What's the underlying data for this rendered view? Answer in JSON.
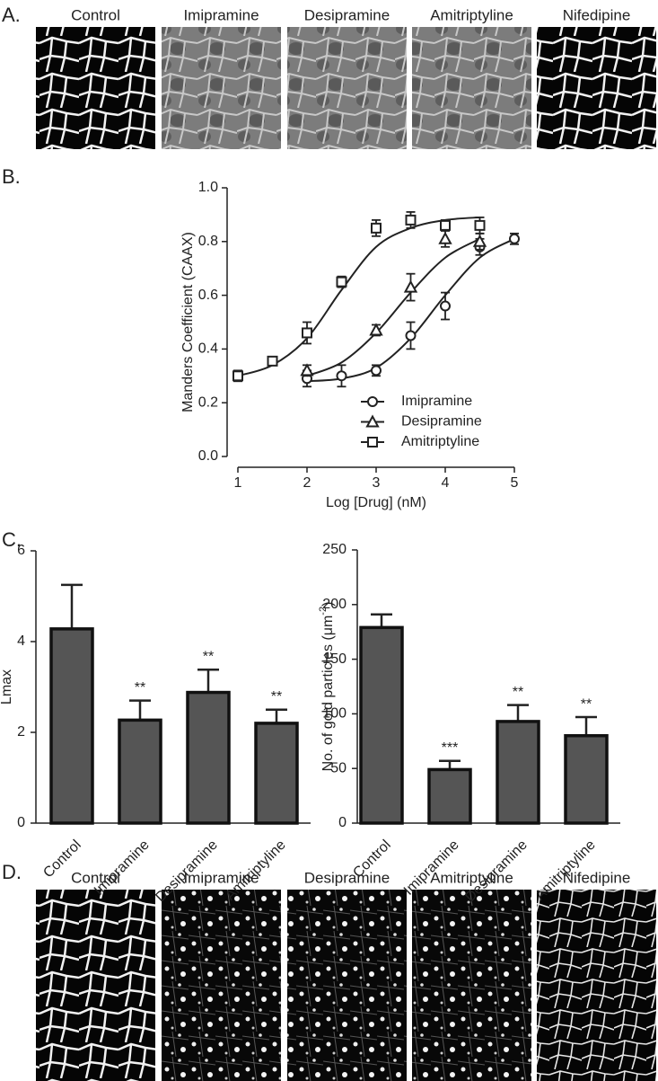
{
  "panel_a": {
    "label": "A.",
    "images": [
      "Control",
      "Imipramine",
      "Desipramine",
      "Amitriptyline",
      "Nifedipine"
    ]
  },
  "panel_d": {
    "label": "D.",
    "images": [
      "Control",
      "Imipramine",
      "Desipramine",
      "Amitriptyline",
      "Nifedipine"
    ]
  },
  "chart_data": [
    {
      "type": "line",
      "panel_label": "B.",
      "x_label": "Log [Drug] (nM)",
      "y_label": "Manders Coefficient (CAAX)",
      "x": [
        1,
        1.5,
        2,
        2.5,
        3,
        3.5,
        4,
        4.5,
        5
      ],
      "xlim": [
        1,
        5
      ],
      "xticks": [
        1,
        2,
        3,
        4,
        5
      ],
      "ylim": [
        0,
        1
      ],
      "yticks": [
        {
          "value": 0,
          "label": "0.0"
        },
        {
          "value": 0.2,
          "label": "0.2"
        },
        {
          "value": 0.4,
          "label": "0.4"
        },
        {
          "value": 0.6,
          "label": "0.6"
        },
        {
          "value": 0.8,
          "label": "0.8"
        },
        {
          "value": 1,
          "label": "1.0"
        }
      ],
      "legend": "lower right",
      "color": "#222222",
      "series": [
        {
          "name": "Imipramine",
          "marker": "circle",
          "values": [
            null,
            null,
            0.29,
            0.3,
            0.32,
            0.45,
            0.56,
            0.78,
            0.81
          ],
          "errors": [
            null,
            null,
            0.03,
            0.04,
            0.02,
            0.05,
            0.05,
            0.03,
            0.02
          ],
          "curve": [
            null,
            null,
            0.28,
            0.29,
            0.33,
            0.44,
            0.6,
            0.74,
            0.81
          ]
        },
        {
          "name": "Desipramine",
          "marker": "triangle",
          "values": [
            null,
            null,
            0.32,
            null,
            0.47,
            0.63,
            0.81,
            0.8,
            null
          ],
          "errors": [
            null,
            null,
            0.02,
            null,
            0.02,
            0.05,
            0.03,
            0.03,
            null
          ],
          "curve": [
            null,
            null,
            0.3,
            0.35,
            0.46,
            0.61,
            0.74,
            0.81,
            null
          ]
        },
        {
          "name": "Amitriptyline",
          "marker": "square",
          "values": [
            0.3,
            0.355,
            0.46,
            0.65,
            0.85,
            0.88,
            0.86,
            0.86,
            null
          ],
          "errors": [
            0.02,
            0.01,
            0.04,
            0.02,
            0.03,
            0.03,
            0.02,
            0.03,
            null
          ],
          "curve": [
            0.3,
            0.34,
            0.44,
            0.62,
            0.78,
            0.85,
            0.88,
            0.89,
            null
          ]
        }
      ]
    },
    {
      "type": "bar",
      "panel_label": "C.",
      "y_label": "Lmax",
      "categories": [
        "Control",
        "Imipramine",
        "Desipramine",
        "Amitriptyline"
      ],
      "values": [
        4.28,
        2.27,
        2.88,
        2.2
      ],
      "errors": [
        0.97,
        0.43,
        0.5,
        0.3
      ],
      "annotations": [
        null,
        "**",
        "**",
        "**"
      ],
      "ylim": [
        0,
        6
      ],
      "yticks": [
        0,
        2,
        4,
        6
      ],
      "color": "#555555"
    },
    {
      "type": "bar",
      "y_label": "No. of gold particles (μm",
      "y_label_sup": "-2",
      "y_label_end": ")",
      "categories": [
        "Control",
        "Imipramine",
        "Desipramine",
        "Amitriptyline"
      ],
      "values": [
        179,
        49,
        93,
        80
      ],
      "errors": [
        12,
        8,
        15,
        17
      ],
      "annotations": [
        null,
        "***",
        "**",
        "**"
      ],
      "ylim": [
        0,
        250
      ],
      "yticks": [
        0,
        50,
        100,
        150,
        200,
        250
      ],
      "color": "#555555"
    }
  ]
}
